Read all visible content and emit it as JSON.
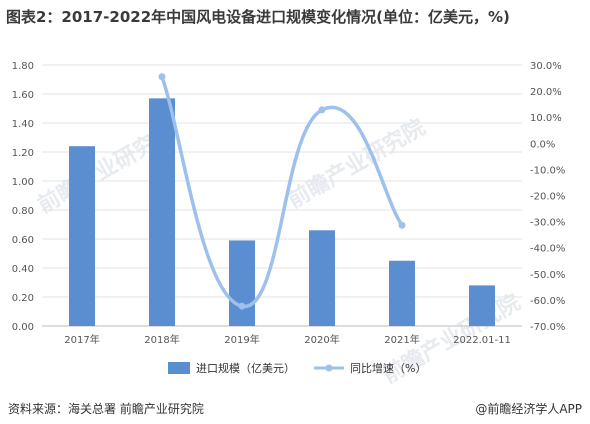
{
  "title": "图表2：2017-2022年中国风电设备进口规模变化情况(单位：亿美元，%)",
  "source": "资料来源：海关总署 前瞻产业研究院",
  "brand": "@前瞻经济学人APP",
  "watermark": "前瞻产业研究院",
  "colors": {
    "bar": "#5b8ed0",
    "line": "#9dc0ec",
    "grid": "#e3e3e3",
    "axis_text": "#555555"
  },
  "chart_data": {
    "type": "bar+line",
    "categories": [
      "2017年",
      "2018年",
      "2019年",
      "2020年",
      "2021年",
      "2022.01-11"
    ],
    "series": [
      {
        "name": "进口规模（亿美元）",
        "type": "bar",
        "axis": "left",
        "values": [
          1.24,
          1.57,
          0.59,
          0.66,
          0.45,
          0.28
        ]
      },
      {
        "name": "同比增速（%）",
        "type": "line",
        "axis": "right",
        "smooth": true,
        "values": [
          null,
          25.5,
          -62.4,
          12.8,
          -31.4,
          null
        ]
      }
    ],
    "y_left": {
      "min": 0,
      "max": 1.8,
      "step": 0.2,
      "ticks": [
        "0.00",
        "0.20",
        "0.40",
        "0.60",
        "0.80",
        "1.00",
        "1.20",
        "1.40",
        "1.60",
        "1.80"
      ]
    },
    "y_right": {
      "min": -70,
      "max": 30,
      "step": 10,
      "ticks": [
        "-70.0%",
        "-60.0%",
        "-50.0%",
        "-40.0%",
        "-30.0%",
        "-20.0%",
        "-10.0%",
        "0.0%",
        "10.0%",
        "20.0%",
        "30.0%"
      ]
    },
    "grid": true,
    "legend_position": "bottom-center"
  }
}
